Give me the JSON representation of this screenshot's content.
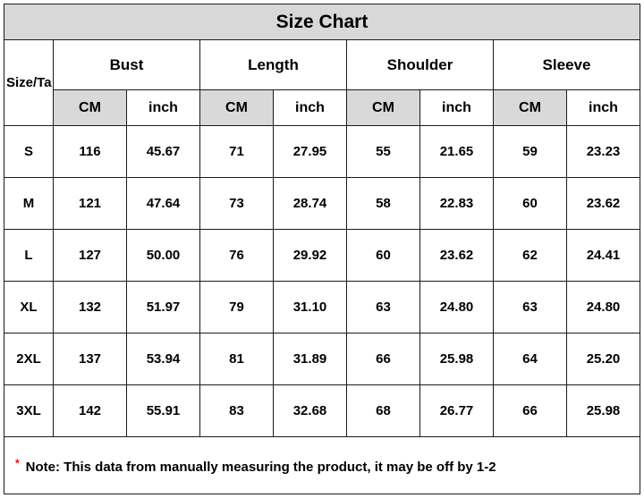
{
  "chart_data": {
    "type": "table",
    "title": "Size Chart",
    "size_header": "Size/Ta",
    "measurement_groups": [
      "Bust",
      "Length",
      "Shoulder",
      "Sleeve"
    ],
    "units": {
      "cm": "CM",
      "inch": "inch"
    },
    "rows": [
      {
        "size": "S",
        "values": [
          "116",
          "45.67",
          "71",
          "27.95",
          "55",
          "21.65",
          "59",
          "23.23"
        ]
      },
      {
        "size": "M",
        "values": [
          "121",
          "47.64",
          "73",
          "28.74",
          "58",
          "22.83",
          "60",
          "23.62"
        ]
      },
      {
        "size": "L",
        "values": [
          "127",
          "50.00",
          "76",
          "29.92",
          "60",
          "23.62",
          "62",
          "24.41"
        ]
      },
      {
        "size": "XL",
        "values": [
          "132",
          "51.97",
          "79",
          "31.10",
          "63",
          "24.80",
          "63",
          "24.80"
        ]
      },
      {
        "size": "2XL",
        "values": [
          "137",
          "53.94",
          "81",
          "31.89",
          "66",
          "25.98",
          "64",
          "25.20"
        ]
      },
      {
        "size": "3XL",
        "values": [
          "142",
          "55.91",
          "83",
          "32.68",
          "68",
          "26.77",
          "66",
          "25.98"
        ]
      }
    ]
  },
  "note": {
    "marker": "*",
    "text": "Note: This data from manually measuring the product, it may be off by 1-2"
  },
  "colors": {
    "title_bg": "#d8d8d8",
    "unit_cm_bg": "#d9d9d9",
    "border": "#1a1a1a",
    "note_marker": "#ff0000"
  }
}
